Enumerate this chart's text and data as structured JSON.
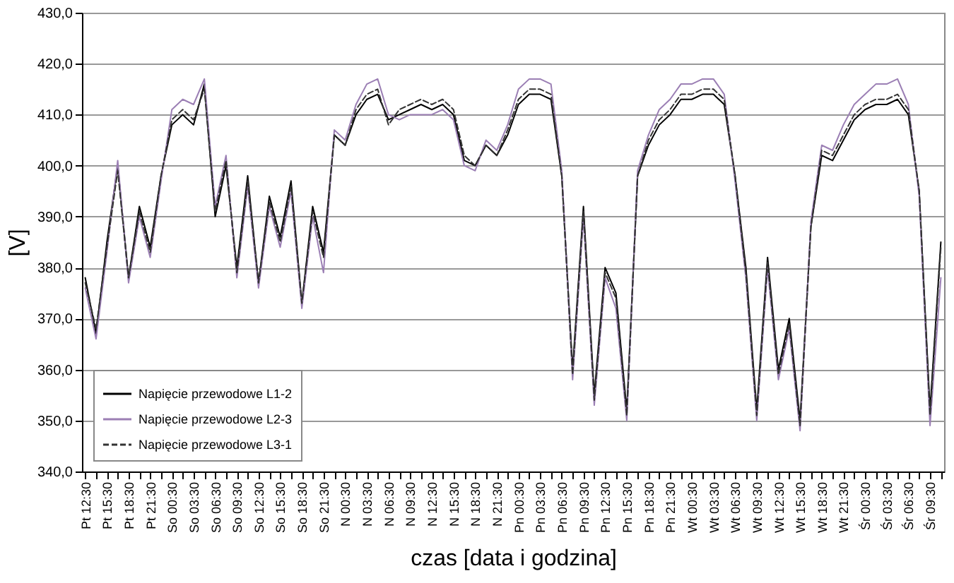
{
  "chart_data": {
    "type": "line",
    "xlabel": "czas [data i godzina]",
    "ylabel": "[V]",
    "categories": [
      "Pt 12:30",
      null,
      "Pt 15:30",
      null,
      "Pt 18:30",
      null,
      "Pt 21:30",
      null,
      "So 00:30",
      null,
      "So 03:30",
      null,
      "So 06:30",
      null,
      "So 09:30",
      null,
      "So 12:30",
      null,
      "So 15:30",
      null,
      "So 18:30",
      null,
      "So 21:30",
      null,
      "N 00:30",
      null,
      "N 03:30",
      null,
      "N 06:30",
      null,
      "N 09:30",
      null,
      "N 12:30",
      null,
      "N 15:30",
      null,
      "N 18:30",
      null,
      "N 21:30",
      null,
      "Pn 00:30",
      null,
      "Pn 03:30",
      null,
      "Pn 06:30",
      null,
      "Pn 09:30",
      null,
      "Pn 12:30",
      null,
      "Pn 15:30",
      null,
      "Pn 18:30",
      null,
      "Pn 21:30",
      null,
      "Wt 00:30",
      null,
      "Wt 03:30",
      null,
      "Wt 06:30",
      null,
      "Wt 09:30",
      null,
      "Wt 12:30",
      null,
      "Wt 15:30",
      null,
      "Wt 18:30",
      null,
      "Wt 21:30",
      null,
      "Śr 00:30",
      null,
      "Śr 03:30",
      null,
      "Śr 06:30",
      null,
      "Śr 09:30",
      null
    ],
    "series": [
      {
        "name": "Napięcie przewodowe L1-2",
        "color": "#000000",
        "line_style": "solid",
        "values": [
          378,
          367,
          385,
          400,
          378,
          392,
          384,
          398,
          408,
          410,
          408,
          416,
          390,
          400,
          380,
          398,
          377,
          394,
          386,
          397,
          373,
          392,
          383,
          406,
          404,
          410,
          413,
          414,
          409,
          410,
          411,
          412,
          411,
          412,
          410,
          401,
          400,
          404,
          402,
          406,
          412,
          414,
          414,
          413,
          398,
          360,
          392,
          355,
          380,
          375,
          352,
          398,
          404,
          408,
          410,
          413,
          413,
          414,
          414,
          412,
          398,
          380,
          352,
          382,
          360,
          370,
          350,
          388,
          402,
          401,
          405,
          409,
          411,
          412,
          412,
          413,
          410,
          395,
          352,
          385
        ]
      },
      {
        "name": "Napięcie przewodowe L2-3",
        "color": "#9b7fb4",
        "line_style": "solid",
        "values": [
          376,
          366,
          383,
          401,
          377,
          390,
          382,
          397,
          411,
          413,
          412,
          417,
          392,
          402,
          378,
          396,
          376,
          392,
          384,
          395,
          372,
          390,
          379,
          407,
          405,
          412,
          416,
          417,
          410,
          409,
          410,
          410,
          410,
          411,
          409,
          400,
          399,
          405,
          403,
          408,
          415,
          417,
          417,
          416,
          399,
          358,
          390,
          353,
          378,
          372,
          350,
          399,
          406,
          411,
          413,
          416,
          416,
          417,
          417,
          414,
          397,
          378,
          350,
          380,
          358,
          368,
          348,
          389,
          404,
          403,
          408,
          412,
          414,
          416,
          416,
          417,
          412,
          394,
          349,
          378
        ]
      },
      {
        "name": "Napięcie przewodowe L3-1",
        "color": "#333333",
        "line_style": "dashed",
        "values": [
          377,
          368,
          384,
          399,
          378,
          391,
          383,
          398,
          409,
          411,
          409,
          415,
          391,
          401,
          379,
          397,
          377,
          393,
          385,
          396,
          373,
          391,
          382,
          406,
          404,
          411,
          414,
          415,
          408,
          411,
          412,
          413,
          412,
          413,
          411,
          402,
          400,
          404,
          402,
          407,
          413,
          415,
          415,
          414,
          398,
          359,
          391,
          354,
          379,
          374,
          351,
          398,
          405,
          409,
          411,
          414,
          414,
          415,
          415,
          413,
          398,
          379,
          351,
          381,
          359,
          369,
          349,
          388,
          403,
          402,
          406,
          410,
          412,
          413,
          413,
          414,
          411,
          395,
          351,
          384
        ]
      }
    ],
    "ylim": [
      340,
      430
    ],
    "yticks": [
      {
        "value": 340,
        "label": "340,0"
      },
      {
        "value": 350,
        "label": "350,0"
      },
      {
        "value": 360,
        "label": "360,0"
      },
      {
        "value": 370,
        "label": "370,0"
      },
      {
        "value": 380,
        "label": "380,0"
      },
      {
        "value": 390,
        "label": "390,0"
      },
      {
        "value": 400,
        "label": "400,0"
      },
      {
        "value": 410,
        "label": "410,0"
      },
      {
        "value": 420,
        "label": "420,0"
      },
      {
        "value": 430,
        "label": "430,0"
      }
    ],
    "grid": "y",
    "legend": "bottom left"
  }
}
